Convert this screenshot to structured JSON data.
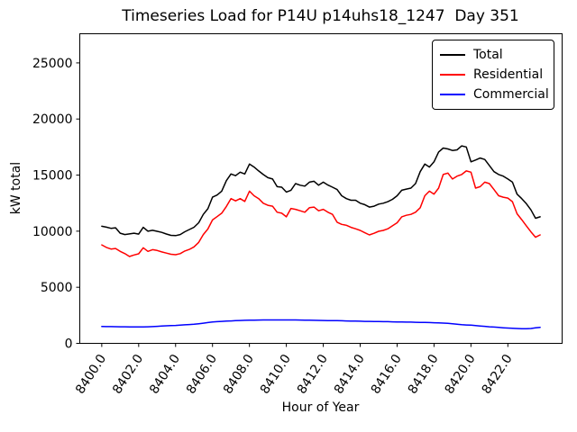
{
  "figure": {
    "title": "Timeseries Load for P14U p14uhs18_1247  Day 351",
    "xlabel": "Hour of Year",
    "ylabel": "kW total"
  },
  "legend": {
    "position": "upper right",
    "entries": [
      {
        "label": "Total",
        "color": "#000000"
      },
      {
        "label": "Residential",
        "color": "#ff0000"
      },
      {
        "label": "Commercial",
        "color": "#0000ff"
      }
    ]
  },
  "chart_data": {
    "type": "line",
    "title": "Timeseries Load for P14U p14uhs18_1247  Day 351",
    "xlabel": "Hour of Year",
    "ylabel": "kW total",
    "grid": false,
    "legend_position": "upper right",
    "xlim": [
      8398.81,
      8424.94
    ],
    "ylim": [
      0,
      27600
    ],
    "x_tick_values": [
      8400,
      8402,
      8404,
      8406,
      8408,
      8410,
      8412,
      8414,
      8416,
      8418,
      8420,
      8422
    ],
    "x_tick_labels": [
      "8400.0",
      "8402.0",
      "8404.0",
      "8406.0",
      "8408.0",
      "8410.0",
      "8412.0",
      "8414.0",
      "8416.0",
      "8418.0",
      "8420.0",
      "8422.0"
    ],
    "y_tick_values": [
      0,
      5000,
      10000,
      15000,
      20000,
      25000
    ],
    "y_tick_labels": [
      "0",
      "5000",
      "10000",
      "15000",
      "20000",
      "25000"
    ],
    "x": [
      8400.0,
      8400.25,
      8400.5,
      8400.75,
      8401.0,
      8401.25,
      8401.5,
      8401.75,
      8402.0,
      8402.25,
      8402.5,
      8402.75,
      8403.0,
      8403.25,
      8403.5,
      8403.75,
      8404.0,
      8404.25,
      8404.5,
      8404.75,
      8405.0,
      8405.25,
      8405.5,
      8405.75,
      8406.0,
      8406.25,
      8406.5,
      8406.75,
      8407.0,
      8407.25,
      8407.5,
      8407.75,
      8408.0,
      8408.25,
      8408.5,
      8408.75,
      8409.0,
      8409.25,
      8409.5,
      8409.75,
      8410.0,
      8410.25,
      8410.5,
      8410.75,
      8411.0,
      8411.25,
      8411.5,
      8411.75,
      8412.0,
      8412.25,
      8412.5,
      8412.75,
      8413.0,
      8413.25,
      8413.5,
      8413.75,
      8414.0,
      8414.25,
      8414.5,
      8414.75,
      8415.0,
      8415.25,
      8415.5,
      8415.75,
      8416.0,
      8416.25,
      8416.5,
      8416.75,
      8417.0,
      8417.25,
      8417.5,
      8417.75,
      8418.0,
      8418.25,
      8418.5,
      8418.75,
      8419.0,
      8419.25,
      8419.5,
      8419.75,
      8420.0,
      8420.25,
      8420.5,
      8420.75,
      8421.0,
      8421.25,
      8421.5,
      8421.75,
      8422.0,
      8422.25,
      8422.5,
      8422.75,
      8423.0,
      8423.25,
      8423.5,
      8423.75
    ],
    "series": [
      {
        "name": "Total",
        "color": "#000000",
        "values": [
          10440,
          10360,
          10250,
          10300,
          9820,
          9700,
          9760,
          9820,
          9740,
          10340,
          10000,
          10080,
          9990,
          9890,
          9750,
          9630,
          9600,
          9700,
          9950,
          10150,
          10350,
          10750,
          11500,
          12000,
          13030,
          13220,
          13570,
          14510,
          15100,
          14950,
          15260,
          15100,
          15980,
          15720,
          15370,
          15050,
          14770,
          14650,
          13970,
          13920,
          13490,
          13650,
          14240,
          14100,
          14020,
          14370,
          14450,
          14100,
          14370,
          14110,
          13920,
          13710,
          13160,
          12900,
          12760,
          12760,
          12490,
          12360,
          12150,
          12230,
          12410,
          12490,
          12630,
          12840,
          13160,
          13650,
          13750,
          13840,
          14240,
          15310,
          15980,
          15720,
          16180,
          17060,
          17410,
          17330,
          17190,
          17250,
          17600,
          17510,
          16180,
          16340,
          16520,
          16390,
          15850,
          15310,
          15050,
          14910,
          14650,
          14370,
          13300,
          12900,
          12450,
          11900,
          11150,
          11280
        ]
      },
      {
        "name": "Residential",
        "color": "#ff0000",
        "values": [
          8780,
          8550,
          8410,
          8460,
          8200,
          8000,
          7740,
          7880,
          7980,
          8520,
          8200,
          8350,
          8280,
          8150,
          8050,
          7940,
          7900,
          8000,
          8230,
          8380,
          8600,
          9000,
          9700,
          10200,
          11000,
          11300,
          11600,
          12200,
          12900,
          12700,
          12900,
          12650,
          13570,
          13160,
          12900,
          12490,
          12310,
          12230,
          11690,
          11600,
          11280,
          12030,
          11950,
          11820,
          11690,
          12090,
          12150,
          11820,
          11950,
          11690,
          11500,
          10800,
          10610,
          10530,
          10340,
          10210,
          10070,
          9860,
          9670,
          9810,
          9990,
          10070,
          10210,
          10480,
          10750,
          11280,
          11420,
          11500,
          11690,
          12090,
          13160,
          13570,
          13300,
          13840,
          15050,
          15180,
          14650,
          14910,
          15050,
          15370,
          15260,
          13840,
          13970,
          14370,
          14240,
          13710,
          13160,
          13030,
          12950,
          12630,
          11550,
          11020,
          10480,
          9940,
          9460,
          9670
        ]
      },
      {
        "name": "Commercial",
        "color": "#0000ff",
        "values": [
          1500,
          1495,
          1490,
          1485,
          1480,
          1475,
          1472,
          1470,
          1470,
          1472,
          1478,
          1490,
          1520,
          1545,
          1565,
          1585,
          1600,
          1625,
          1650,
          1675,
          1700,
          1750,
          1800,
          1850,
          1900,
          1930,
          1960,
          1990,
          2000,
          2020,
          2040,
          2050,
          2060,
          2070,
          2080,
          2085,
          2090,
          2090,
          2090,
          2090,
          2090,
          2090,
          2085,
          2080,
          2070,
          2060,
          2050,
          2045,
          2040,
          2030,
          2025,
          2020,
          2010,
          2000,
          1990,
          1980,
          1970,
          1960,
          1955,
          1950,
          1940,
          1935,
          1930,
          1920,
          1910,
          1905,
          1895,
          1890,
          1880,
          1870,
          1860,
          1850,
          1840,
          1825,
          1805,
          1780,
          1740,
          1700,
          1660,
          1640,
          1620,
          1590,
          1550,
          1520,
          1480,
          1450,
          1420,
          1390,
          1360,
          1340,
          1320,
          1310,
          1300,
          1320,
          1380,
          1430
        ]
      }
    ]
  }
}
